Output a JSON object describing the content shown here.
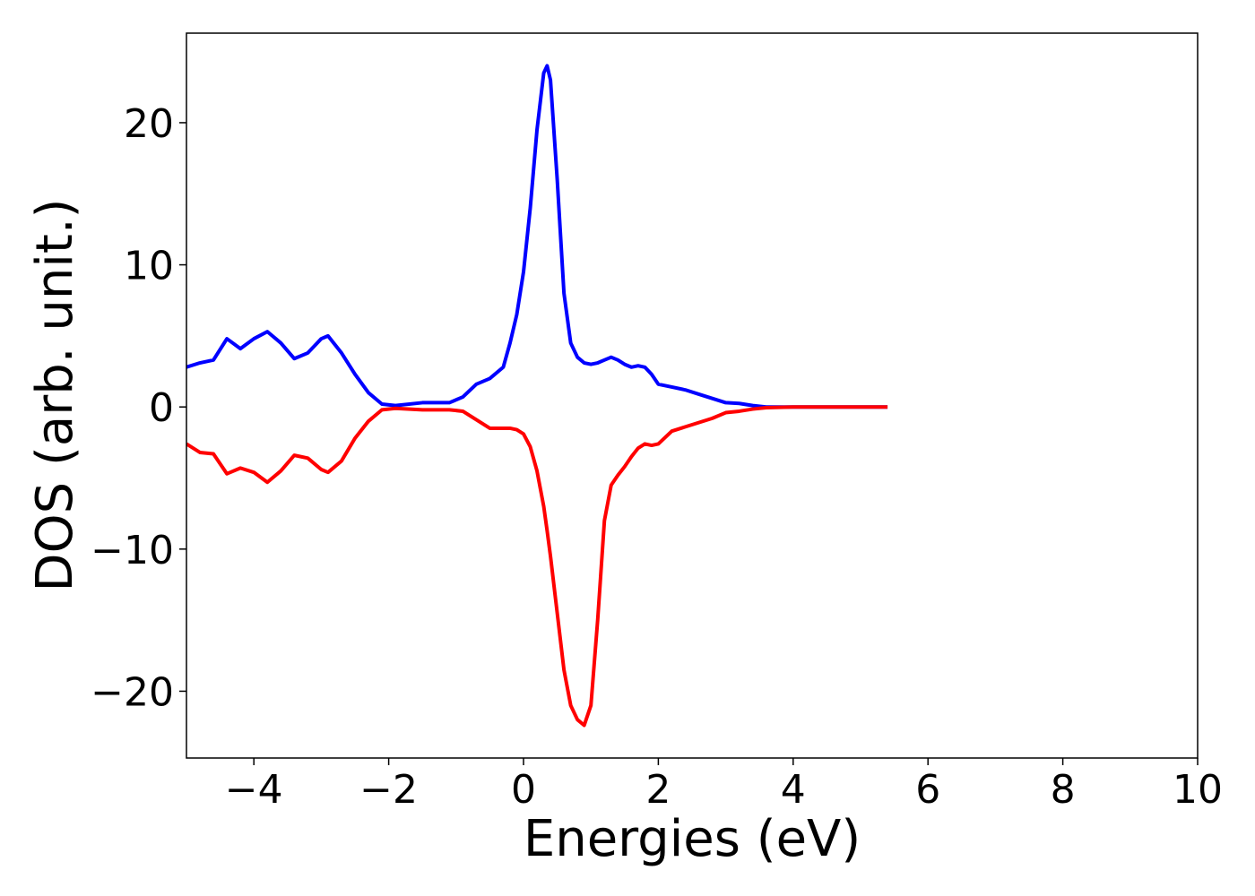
{
  "chart_data": {
    "type": "line",
    "xlabel": "Energies (eV)",
    "ylabel": "DOS (arb. unit.)",
    "x": [
      -5,
      -4.8,
      -4.6,
      -4.4,
      -4.2,
      -4,
      -3.8,
      -3.6,
      -3.4,
      -3.2,
      -3,
      -2.9,
      -2.7,
      -2.5,
      -2.3,
      -2.1,
      -1.9,
      -1.5,
      -1.1,
      -0.9,
      -0.7,
      -0.5,
      -0.3,
      -0.2,
      -0.1,
      0,
      0.1,
      0.2,
      0.3,
      0.35,
      0.4,
      0.5,
      0.6,
      0.7,
      0.8,
      0.9,
      1,
      1.1,
      1.2,
      1.3,
      1.4,
      1.5,
      1.6,
      1.7,
      1.8,
      1.9,
      2,
      2.2,
      2.4,
      2.6,
      2.8,
      3,
      3.2,
      3.4,
      3.6,
      4,
      5.4
    ],
    "series": [
      {
        "color": "#0000ff",
        "values": [
          2.8,
          3.1,
          3.3,
          4.8,
          4.1,
          4.8,
          5.3,
          4.5,
          3.4,
          3.8,
          4.8,
          5.0,
          3.8,
          2.3,
          1.0,
          0.2,
          0.1,
          0.3,
          0.3,
          0.7,
          1.6,
          2.0,
          2.8,
          4.5,
          6.5,
          9.5,
          14,
          19.5,
          23.5,
          24,
          23,
          16,
          8,
          4.5,
          3.5,
          3.1,
          3.0,
          3.1,
          3.3,
          3.5,
          3.3,
          3.0,
          2.8,
          2.9,
          2.8,
          2.3,
          1.6,
          1.4,
          1.2,
          0.9,
          0.6,
          0.3,
          0.25,
          0.1,
          0,
          0,
          0
        ]
      },
      {
        "color": "#ff0000",
        "values": [
          -2.6,
          -3.2,
          -3.3,
          -4.7,
          -4.3,
          -4.6,
          -5.3,
          -4.5,
          -3.4,
          -3.6,
          -4.4,
          -4.6,
          -3.8,
          -2.2,
          -1.0,
          -0.2,
          -0.1,
          -0.2,
          -0.2,
          -0.3,
          -0.9,
          -1.5,
          -1.5,
          -1.5,
          -1.6,
          -1.9,
          -2.8,
          -4.5,
          -7,
          -8.7,
          -10.5,
          -14.5,
          -18.5,
          -21,
          -22,
          -22.4,
          -21,
          -15,
          -8,
          -5.5,
          -4.8,
          -4.2,
          -3.5,
          -2.9,
          -2.6,
          -2.7,
          -2.6,
          -1.7,
          -1.4,
          -1.1,
          -0.8,
          -0.4,
          -0.3,
          -0.15,
          -0.05,
          0,
          0
        ]
      }
    ],
    "xlim": [
      -5,
      10
    ],
    "xticks": [
      {
        "value": -4,
        "label": "−4"
      },
      {
        "value": -2,
        "label": "−2"
      },
      0,
      2,
      4,
      6,
      8,
      10
    ],
    "ylim": [
      -24.7,
      26.3
    ],
    "yticks": [
      {
        "value": -20,
        "label": "−20"
      },
      {
        "value": -10,
        "label": "−10"
      },
      0,
      10,
      20
    ],
    "grid": false
  }
}
